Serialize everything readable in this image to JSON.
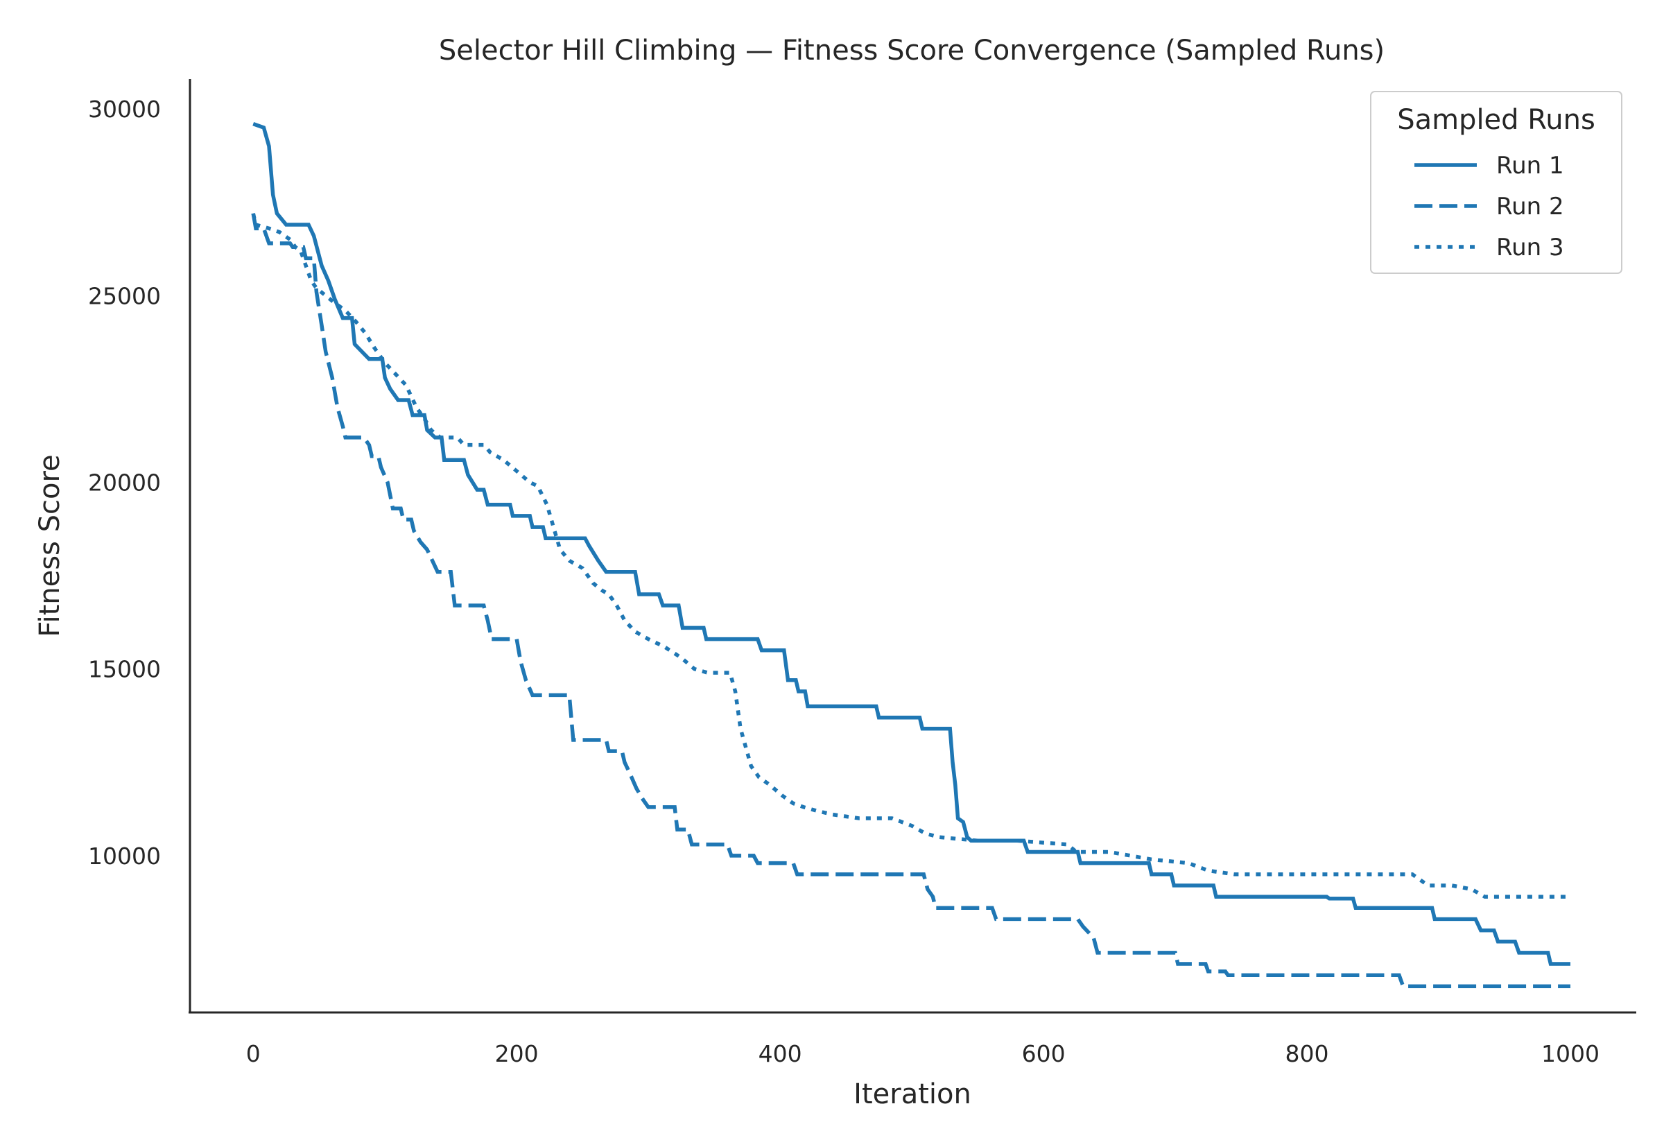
{
  "chart_data": {
    "type": "line",
    "title": "Selector Hill Climbing — Fitness Score Convergence (Sampled Runs)",
    "xlabel": "Iteration",
    "ylabel": "Fitness Score",
    "xlim": [
      -48,
      1050
    ],
    "ylim": [
      5800,
      30800
    ],
    "xticks": [
      0,
      200,
      400,
      600,
      800,
      1000
    ],
    "yticks": [
      10000,
      15000,
      20000,
      25000,
      30000
    ],
    "grid": false,
    "legend": {
      "title": "Sampled Runs",
      "position": "top-right"
    },
    "color": "#1f77b4",
    "series": [
      {
        "name": "Run 1",
        "style": "solid",
        "points": [
          [
            0,
            29600
          ],
          [
            8,
            29500
          ],
          [
            12,
            29000
          ],
          [
            15,
            27700
          ],
          [
            18,
            27200
          ],
          [
            25,
            26900
          ],
          [
            42,
            26900
          ],
          [
            46,
            26600
          ],
          [
            52,
            25800
          ],
          [
            57,
            25400
          ],
          [
            62,
            24900
          ],
          [
            68,
            24400
          ],
          [
            75,
            24400
          ],
          [
            77,
            23700
          ],
          [
            88,
            23300
          ],
          [
            98,
            23300
          ],
          [
            100,
            22800
          ],
          [
            104,
            22500
          ],
          [
            110,
            22200
          ],
          [
            118,
            22200
          ],
          [
            121,
            21800
          ],
          [
            130,
            21800
          ],
          [
            132,
            21400
          ],
          [
            138,
            21200
          ],
          [
            143,
            21200
          ],
          [
            145,
            20600
          ],
          [
            160,
            20600
          ],
          [
            163,
            20200
          ],
          [
            170,
            19800
          ],
          [
            175,
            19800
          ],
          [
            178,
            19400
          ],
          [
            195,
            19400
          ],
          [
            197,
            19100
          ],
          [
            210,
            19100
          ],
          [
            212,
            18800
          ],
          [
            220,
            18800
          ],
          [
            222,
            18500
          ],
          [
            252,
            18500
          ],
          [
            255,
            18300
          ],
          [
            262,
            17900
          ],
          [
            268,
            17600
          ],
          [
            290,
            17600
          ],
          [
            293,
            17000
          ],
          [
            308,
            17000
          ],
          [
            311,
            16700
          ],
          [
            323,
            16700
          ],
          [
            326,
            16100
          ],
          [
            342,
            16100
          ],
          [
            344,
            15800
          ],
          [
            383,
            15800
          ],
          [
            386,
            15500
          ],
          [
            403,
            15500
          ],
          [
            406,
            14700
          ],
          [
            412,
            14700
          ],
          [
            414,
            14400
          ],
          [
            419,
            14400
          ],
          [
            421,
            14000
          ],
          [
            473,
            14000
          ],
          [
            475,
            13700
          ],
          [
            506,
            13700
          ],
          [
            508,
            13400
          ],
          [
            529,
            13400
          ],
          [
            531,
            12500
          ],
          [
            533,
            11900
          ],
          [
            535,
            11000
          ],
          [
            539,
            10900
          ],
          [
            542,
            10500
          ],
          [
            545,
            10400
          ],
          [
            585,
            10400
          ],
          [
            588,
            10100
          ],
          [
            626,
            10100
          ],
          [
            628,
            9800
          ],
          [
            680,
            9800
          ],
          [
            682,
            9500
          ],
          [
            697,
            9500
          ],
          [
            699,
            9200
          ],
          [
            729,
            9200
          ],
          [
            731,
            8900
          ],
          [
            815,
            8900
          ],
          [
            817,
            8850
          ],
          [
            835,
            8850
          ],
          [
            837,
            8600
          ],
          [
            895,
            8600
          ],
          [
            897,
            8300
          ],
          [
            928,
            8300
          ],
          [
            932,
            8000
          ],
          [
            942,
            8000
          ],
          [
            945,
            7700
          ],
          [
            958,
            7700
          ],
          [
            961,
            7400
          ],
          [
            983,
            7400
          ],
          [
            985,
            7100
          ],
          [
            1000,
            7100
          ]
        ]
      },
      {
        "name": "Run 2",
        "style": "dashed",
        "points": [
          [
            0,
            27200
          ],
          [
            2,
            26800
          ],
          [
            8,
            26800
          ],
          [
            12,
            26400
          ],
          [
            28,
            26400
          ],
          [
            30,
            26300
          ],
          [
            38,
            26300
          ],
          [
            40,
            26000
          ],
          [
            46,
            26000
          ],
          [
            48,
            25100
          ],
          [
            52,
            24200
          ],
          [
            55,
            23500
          ],
          [
            60,
            22800
          ],
          [
            64,
            22000
          ],
          [
            68,
            21500
          ],
          [
            70,
            21200
          ],
          [
            84,
            21200
          ],
          [
            88,
            21000
          ],
          [
            90,
            20700
          ],
          [
            95,
            20700
          ],
          [
            97,
            20400
          ],
          [
            102,
            20000
          ],
          [
            106,
            19300
          ],
          [
            112,
            19300
          ],
          [
            114,
            19000
          ],
          [
            120,
            19000
          ],
          [
            122,
            18700
          ],
          [
            127,
            18400
          ],
          [
            132,
            18200
          ],
          [
            136,
            17900
          ],
          [
            140,
            17600
          ],
          [
            150,
            17600
          ],
          [
            153,
            16700
          ],
          [
            175,
            16700
          ],
          [
            178,
            16300
          ],
          [
            181,
            15800
          ],
          [
            200,
            15800
          ],
          [
            203,
            15200
          ],
          [
            207,
            14700
          ],
          [
            212,
            14300
          ],
          [
            240,
            14300
          ],
          [
            243,
            13100
          ],
          [
            268,
            13100
          ],
          [
            270,
            12800
          ],
          [
            280,
            12800
          ],
          [
            282,
            12500
          ],
          [
            286,
            12200
          ],
          [
            291,
            11800
          ],
          [
            296,
            11500
          ],
          [
            300,
            11300
          ],
          [
            320,
            11300
          ],
          [
            322,
            10700
          ],
          [
            330,
            10700
          ],
          [
            333,
            10300
          ],
          [
            360,
            10300
          ],
          [
            363,
            10000
          ],
          [
            380,
            10000
          ],
          [
            383,
            9800
          ],
          [
            410,
            9800
          ],
          [
            413,
            9500
          ],
          [
            509,
            9500
          ],
          [
            512,
            9100
          ],
          [
            516,
            8900
          ],
          [
            518,
            8600
          ],
          [
            561,
            8600
          ],
          [
            564,
            8300
          ],
          [
            626,
            8300
          ],
          [
            630,
            8100
          ],
          [
            638,
            7800
          ],
          [
            641,
            7400
          ],
          [
            676,
            7400
          ],
          [
            679,
            7400
          ],
          [
            700,
            7400
          ],
          [
            702,
            7100
          ],
          [
            723,
            7100
          ],
          [
            725,
            6900
          ],
          [
            738,
            6900
          ],
          [
            740,
            6800
          ],
          [
            870,
            6800
          ],
          [
            873,
            6500
          ],
          [
            1000,
            6500
          ]
        ]
      },
      {
        "name": "Run 3",
        "style": "dotted",
        "points": [
          [
            0,
            27200
          ],
          [
            2,
            26900
          ],
          [
            12,
            26800
          ],
          [
            20,
            26700
          ],
          [
            28,
            26500
          ],
          [
            32,
            26300
          ],
          [
            36,
            26200
          ],
          [
            40,
            25800
          ],
          [
            44,
            25400
          ],
          [
            48,
            25200
          ],
          [
            55,
            25000
          ],
          [
            62,
            24800
          ],
          [
            70,
            24600
          ],
          [
            78,
            24300
          ],
          [
            85,
            24000
          ],
          [
            92,
            23600
          ],
          [
            100,
            23200
          ],
          [
            108,
            22900
          ],
          [
            116,
            22600
          ],
          [
            124,
            22000
          ],
          [
            130,
            21700
          ],
          [
            135,
            21400
          ],
          [
            142,
            21200
          ],
          [
            155,
            21200
          ],
          [
            160,
            21000
          ],
          [
            175,
            21000
          ],
          [
            180,
            20800
          ],
          [
            190,
            20600
          ],
          [
            200,
            20300
          ],
          [
            210,
            20000
          ],
          [
            216,
            19900
          ],
          [
            223,
            19400
          ],
          [
            228,
            18800
          ],
          [
            233,
            18200
          ],
          [
            240,
            17900
          ],
          [
            250,
            17700
          ],
          [
            258,
            17300
          ],
          [
            265,
            17100
          ],
          [
            270,
            17000
          ],
          [
            276,
            16700
          ],
          [
            282,
            16300
          ],
          [
            290,
            16000
          ],
          [
            300,
            15800
          ],
          [
            312,
            15600
          ],
          [
            325,
            15300
          ],
          [
            335,
            15000
          ],
          [
            345,
            14900
          ],
          [
            362,
            14900
          ],
          [
            366,
            14400
          ],
          [
            370,
            13400
          ],
          [
            374,
            12900
          ],
          [
            378,
            12400
          ],
          [
            384,
            12100
          ],
          [
            392,
            11900
          ],
          [
            402,
            11600
          ],
          [
            410,
            11400
          ],
          [
            418,
            11300
          ],
          [
            428,
            11200
          ],
          [
            440,
            11100
          ],
          [
            460,
            11000
          ],
          [
            485,
            11000
          ],
          [
            500,
            10800
          ],
          [
            510,
            10600
          ],
          [
            520,
            10500
          ],
          [
            550,
            10400
          ],
          [
            580,
            10400
          ],
          [
            618,
            10300
          ],
          [
            625,
            10100
          ],
          [
            650,
            10100
          ],
          [
            682,
            9900
          ],
          [
            710,
            9800
          ],
          [
            725,
            9600
          ],
          [
            745,
            9500
          ],
          [
            800,
            9500
          ],
          [
            880,
            9500
          ],
          [
            892,
            9200
          ],
          [
            910,
            9200
          ],
          [
            925,
            9100
          ],
          [
            935,
            8900
          ],
          [
            1000,
            8900
          ]
        ]
      }
    ]
  }
}
